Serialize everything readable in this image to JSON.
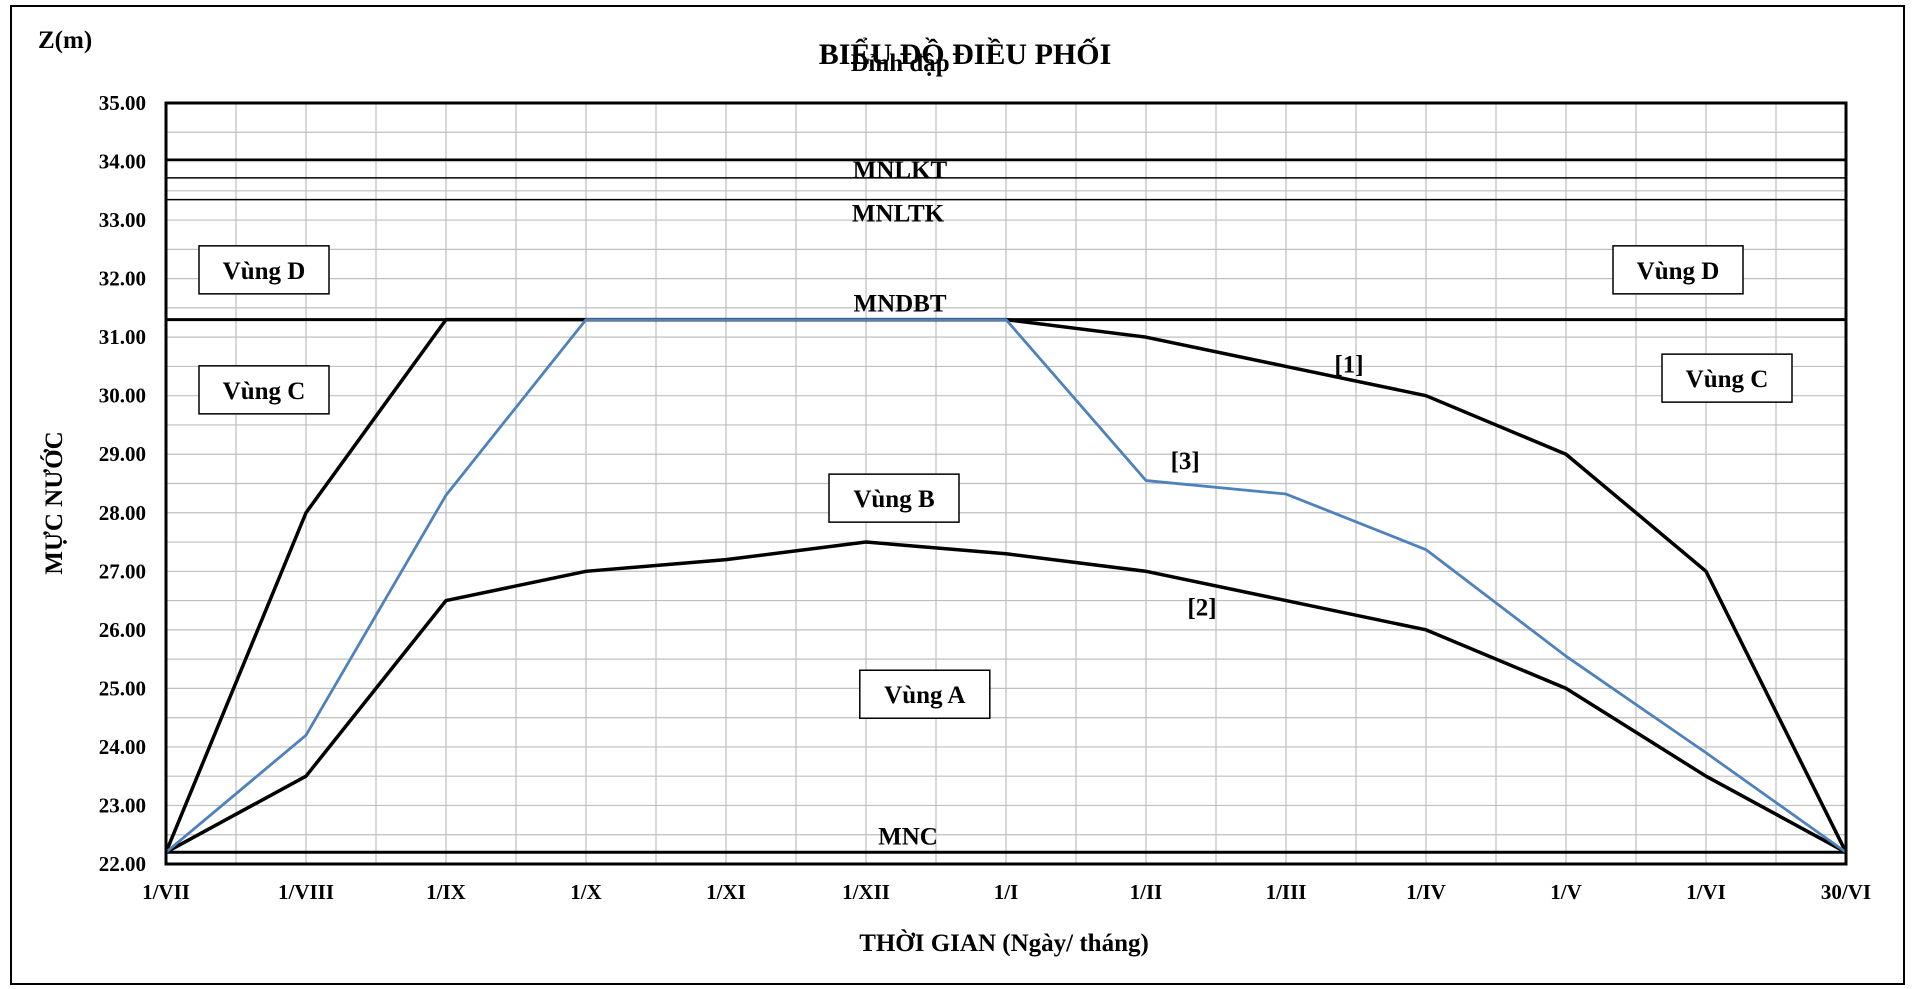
{
  "chart_data": {
    "type": "line",
    "title": "BIỂU ĐỒ ĐIỀU PHỐI",
    "xlabel": "THỜI GIAN (Ngày/ tháng)",
    "ylabel": "MỰC NƯỚC",
    "yunit_label": "Z(m)",
    "ylim": [
      22,
      35
    ],
    "ytick_labels": [
      "22.00",
      "23.00",
      "24.00",
      "25.00",
      "26.00",
      "27.00",
      "28.00",
      "29.00",
      "30.00",
      "31.00",
      "32.00",
      "33.00",
      "34.00",
      "35.00"
    ],
    "x_tick_labels": [
      "1/VII",
      "1/VIII",
      "1/IX",
      "1/X",
      "1/XI",
      "1/XII",
      "1/I",
      "1/II",
      "1/III",
      "1/IV",
      "1/V",
      "1/VI",
      "30/VI"
    ],
    "grid": true,
    "series": [
      {
        "name": "[1]",
        "color": "#000000",
        "values": [
          22.2,
          28.0,
          31.3,
          31.3,
          31.3,
          31.3,
          31.3,
          31.0,
          30.5,
          30.0,
          29.0,
          27.0,
          22.2
        ]
      },
      {
        "name": "[2]",
        "color": "#000000",
        "values": [
          22.2,
          23.5,
          26.5,
          27.0,
          27.2,
          27.5,
          27.3,
          27.0,
          26.5,
          26.0,
          25.0,
          23.5,
          22.2
        ]
      },
      {
        "name": "[3]",
        "color": "#4f81bd",
        "values": [
          22.2,
          24.2,
          28.3,
          31.3,
          31.3,
          31.3,
          31.3,
          28.55,
          28.32,
          27.37,
          25.55,
          23.9,
          22.2
        ]
      }
    ],
    "reference_lines": [
      {
        "label": "Đỉnh đập",
        "value": 35.0
      },
      {
        "label": "MNLKT",
        "value": 34.03
      },
      {
        "label": "MNLTK",
        "value": 33.35
      },
      {
        "label": "MNDBT",
        "value": 31.3
      },
      {
        "label": "MNC",
        "value": 22.2
      }
    ],
    "extra_line_value": 33.72,
    "zones": [
      {
        "label": "Vùng D",
        "x": 0.7,
        "y": 32.15
      },
      {
        "label": "Vùng D",
        "x": 10.8,
        "y": 32.15
      },
      {
        "label": "Vùng C",
        "x": 0.7,
        "y": 30.1
      },
      {
        "label": "Vùng C",
        "x": 11.15,
        "y": 30.3
      },
      {
        "label": "Vùng B",
        "x": 5.2,
        "y": 28.25
      },
      {
        "label": "Vùng A",
        "x": 5.42,
        "y": 24.9
      }
    ],
    "curve_labels": [
      {
        "label": "[1]",
        "x": 8.45,
        "y": 30.55
      },
      {
        "label": "[3]",
        "x": 7.28,
        "y": 28.9
      },
      {
        "label": "[2]",
        "x": 7.4,
        "y": 26.4
      }
    ]
  }
}
